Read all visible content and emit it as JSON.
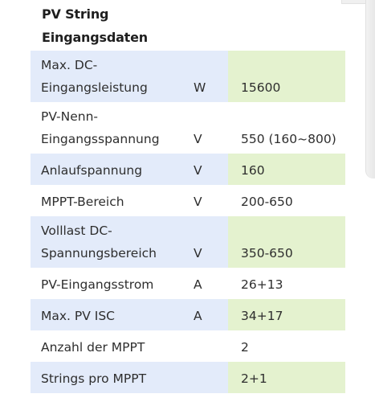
{
  "heading": {
    "line1": "PV String",
    "line2": "Eingangsdaten"
  },
  "rows": [
    {
      "label_lines": [
        "Max. DC-",
        "Eingangsleistung"
      ],
      "unit": "W",
      "value": "15600",
      "shaded": true
    },
    {
      "label_lines": [
        "PV-Nenn-",
        "Eingangsspannung"
      ],
      "unit": "V",
      "value": "550 (160~800)",
      "shaded": false
    },
    {
      "label_lines": [
        "Anlaufspannung"
      ],
      "unit": "V",
      "value": "160",
      "shaded": true
    },
    {
      "label_lines": [
        "MPPT-Bereich"
      ],
      "unit": "V",
      "value": "200-650",
      "shaded": false
    },
    {
      "label_lines": [
        "Volllast DC-",
        "Spannungsbereich"
      ],
      "unit": "V",
      "value": "350-650",
      "shaded": true
    },
    {
      "label_lines": [
        "PV-Eingangsstrom"
      ],
      "unit": "A",
      "value": "26+13",
      "shaded": false
    },
    {
      "label_lines": [
        "Max. PV ISC"
      ],
      "unit": "A",
      "value": "34+17",
      "shaded": true
    },
    {
      "label_lines": [
        "Anzahl der MPPT"
      ],
      "unit": "",
      "value": "2",
      "shaded": false
    },
    {
      "label_lines": [
        "Strings pro MPPT"
      ],
      "unit": "",
      "value": "2+1",
      "shaded": true
    }
  ],
  "colors": {
    "label_unit_shade": "#e3ebfa",
    "value_shade": "#e4f2cf",
    "text": "#2e2e2e"
  }
}
